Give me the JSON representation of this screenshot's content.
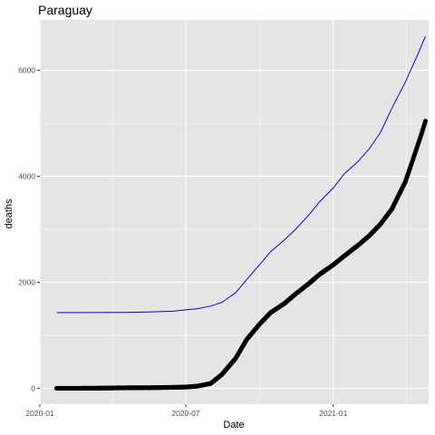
{
  "chart_data": {
    "type": "scatter",
    "title": "Paraguay",
    "xlabel": "Date",
    "ylabel": "deaths",
    "x_ticks": [
      "2020-01",
      "2020-07",
      "2021-01"
    ],
    "y_ticks": [
      "0",
      "2000",
      "4000",
      "6000"
    ],
    "xlim": [
      "2020-01-01",
      "2021-04-30"
    ],
    "ylim": [
      -300,
      6950
    ],
    "grid": true,
    "legend": "none",
    "background": "#e5e5e5",
    "grid_color": "#ffffff",
    "series": [
      {
        "style": "points",
        "color": "#000000",
        "points": [
          [
            "2020-01-22",
            0
          ],
          [
            "2020-02-15",
            0
          ],
          [
            "2020-03-15",
            3
          ],
          [
            "2020-04-15",
            9
          ],
          [
            "2020-05-15",
            11
          ],
          [
            "2020-06-15",
            18
          ],
          [
            "2020-07-01",
            24
          ],
          [
            "2020-07-15",
            40
          ],
          [
            "2020-08-01",
            90
          ],
          [
            "2020-08-15",
            260
          ],
          [
            "2020-09-01",
            560
          ],
          [
            "2020-09-15",
            920
          ],
          [
            "2020-10-01",
            1210
          ],
          [
            "2020-10-15",
            1430
          ],
          [
            "2020-11-01",
            1600
          ],
          [
            "2020-11-15",
            1780
          ],
          [
            "2020-12-01",
            1970
          ],
          [
            "2020-12-15",
            2150
          ],
          [
            "2021-01-01",
            2330
          ],
          [
            "2021-01-15",
            2500
          ],
          [
            "2021-02-01",
            2700
          ],
          [
            "2021-02-15",
            2880
          ],
          [
            "2021-03-01",
            3100
          ],
          [
            "2021-03-15",
            3380
          ],
          [
            "2021-04-01",
            3900
          ],
          [
            "2021-04-10",
            4300
          ],
          [
            "2021-04-20",
            4750
          ],
          [
            "2021-04-26",
            5040
          ]
        ]
      },
      {
        "style": "line",
        "color": "#0000ff",
        "points": [
          [
            "2020-01-22",
            1430
          ],
          [
            "2020-03-01",
            1430
          ],
          [
            "2020-04-15",
            1432
          ],
          [
            "2020-05-15",
            1440
          ],
          [
            "2020-06-15",
            1455
          ],
          [
            "2020-07-01",
            1480
          ],
          [
            "2020-07-15",
            1500
          ],
          [
            "2020-08-01",
            1550
          ],
          [
            "2020-08-15",
            1620
          ],
          [
            "2020-09-01",
            1800
          ],
          [
            "2020-09-15",
            2050
          ],
          [
            "2020-10-01",
            2330
          ],
          [
            "2020-10-15",
            2580
          ],
          [
            "2020-11-01",
            2800
          ],
          [
            "2020-11-15",
            3000
          ],
          [
            "2020-12-01",
            3260
          ],
          [
            "2020-12-15",
            3520
          ],
          [
            "2021-01-01",
            3780
          ],
          [
            "2021-01-15",
            4050
          ],
          [
            "2021-02-01",
            4280
          ],
          [
            "2021-02-15",
            4520
          ],
          [
            "2021-03-01",
            4830
          ],
          [
            "2021-03-15",
            5280
          ],
          [
            "2021-04-01",
            5780
          ],
          [
            "2021-04-15",
            6250
          ],
          [
            "2021-04-26",
            6640
          ]
        ]
      }
    ]
  }
}
